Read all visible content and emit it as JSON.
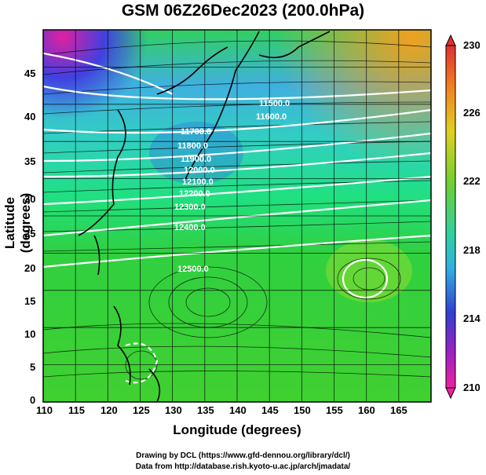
{
  "title": "GSM 06Z26Dec2023 (200.0hPa)",
  "xlabel": "Longitude (degrees)",
  "ylabel": "Latitude (degrees)",
  "x_ticks": [
    "110",
    "115",
    "120",
    "125",
    "130",
    "135",
    "140",
    "145",
    "150",
    "155",
    "160",
    "165"
  ],
  "y_ticks": [
    "0",
    "5",
    "10",
    "15",
    "20",
    "25",
    "30",
    "35",
    "40",
    "45"
  ],
  "colorbar_ticks": [
    "230",
    "226",
    "222",
    "218",
    "214",
    "210"
  ],
  "contour_labels": [
    "11500.0",
    "11600.0",
    "11700.0",
    "11800.0",
    "11900.0",
    "12000.0",
    "12100.0",
    "12200.0",
    "12300.0",
    "12400.0",
    "12500.0"
  ],
  "credit_line1": "Drawing by DCL (https://www.gfd-dennou.org/library/dcl/)",
  "credit_line2": "Data from http://database.rish.kyoto-u.ac.jp/arch/jmadata/",
  "chart_data": {
    "type": "heatmap",
    "title": "GSM 06Z26Dec2023 (200.0hPa)",
    "xlabel": "Longitude (degrees)",
    "ylabel": "Latitude (degrees)",
    "xlim": [
      110,
      170
    ],
    "ylim": [
      0,
      50
    ],
    "colorbar_range": [
      210,
      230
    ],
    "colorbar_ticks": [
      210,
      214,
      218,
      222,
      226,
      230
    ]
  }
}
